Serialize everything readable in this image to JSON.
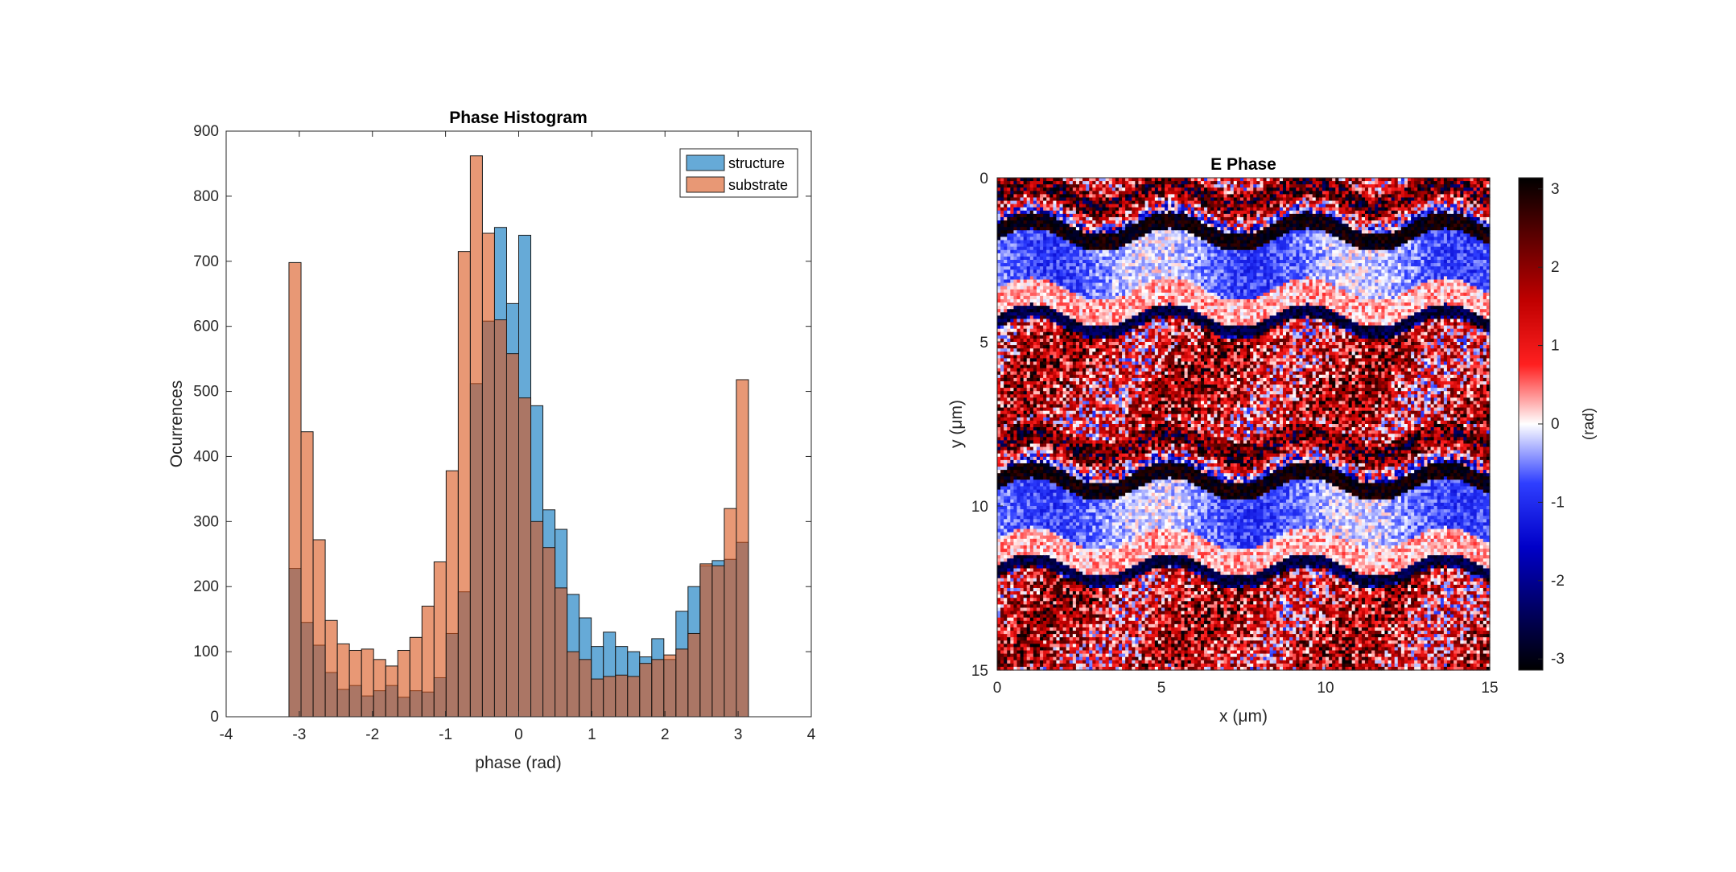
{
  "chart_data": [
    {
      "type": "bar",
      "title": "Phase Histogram",
      "xlabel": "phase (rad)",
      "ylabel": "Ocurrences",
      "xlim": [
        -4,
        4
      ],
      "ylim": [
        0,
        900
      ],
      "xticks": [
        "-4",
        "-3",
        "-2",
        "-1",
        "0",
        "1",
        "2",
        "3",
        "4"
      ],
      "yticks": [
        "0",
        "100",
        "200",
        "300",
        "400",
        "500",
        "600",
        "700",
        "800",
        "900"
      ],
      "bin_range": [
        -3.1416,
        3.1416
      ],
      "legend": {
        "position": "top-right",
        "entries": [
          "structure",
          "substrate"
        ]
      },
      "series": [
        {
          "name": "structure",
          "color": "#0072BD",
          "values": [
            228,
            145,
            110,
            68,
            42,
            48,
            32,
            40,
            48,
            30,
            40,
            38,
            60,
            128,
            192,
            512,
            608,
            752,
            635,
            740,
            478,
            318,
            288,
            188,
            152,
            108,
            130,
            108,
            100,
            92,
            120,
            88,
            162,
            200,
            232,
            240,
            242,
            268
          ]
        },
        {
          "name": "substrate",
          "color": "#D95319",
          "values": [
            698,
            438,
            272,
            148,
            112,
            102,
            104,
            88,
            78,
            102,
            122,
            170,
            238,
            378,
            715,
            862,
            743,
            610,
            558,
            490,
            300,
            260,
            198,
            100,
            88,
            58,
            62,
            64,
            62,
            82,
            88,
            95,
            104,
            128,
            235,
            232,
            320,
            518
          ]
        }
      ]
    },
    {
      "type": "heatmap",
      "title": "E Phase",
      "xlabel": "x (μm)",
      "ylabel": "y (μm)",
      "xlim": [
        0,
        15
      ],
      "ylim": [
        0,
        15
      ],
      "xticks": [
        "0",
        "5",
        "10",
        "15"
      ],
      "yticks": [
        "0",
        "5",
        "10",
        "15"
      ],
      "colorbar": {
        "label": "(rad)",
        "range": [
          -3.1416,
          3.1416
        ],
        "ticks": [
          "3",
          "2",
          "1",
          "0",
          "-1",
          "-2",
          "-3"
        ]
      }
    }
  ]
}
